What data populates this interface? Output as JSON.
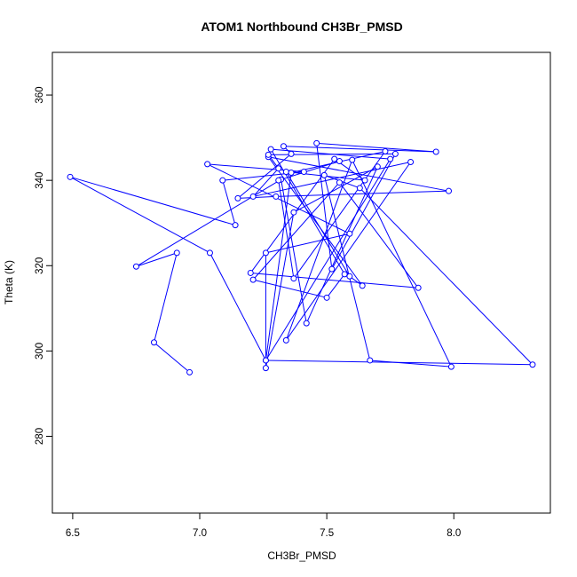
{
  "chart_data": {
    "type": "line",
    "title": "ATOM1 Northbound CH3Br_PMSD",
    "xlabel": "CH3Br_PMSD",
    "ylabel": "Theta (K)",
    "xlim": [
      6.42,
      8.38
    ],
    "ylim": [
      262,
      370
    ],
    "xticks": [
      6.5,
      7.0,
      7.5,
      8.0
    ],
    "xtick_labels": [
      "6.5",
      "7.0",
      "7.5",
      "8.0"
    ],
    "yticks": [
      280,
      300,
      320,
      340,
      360
    ],
    "ytick_labels": [
      "280",
      "300",
      "320",
      "340",
      "360"
    ],
    "grid": false,
    "marker": "open-circle",
    "color": "#0000ff",
    "series": [
      {
        "x": [
          6.96,
          6.82,
          6.91,
          6.75,
          7.32,
          7.42,
          7.7,
          7.37,
          7.26,
          7.26,
          7.59,
          7.03,
          7.41,
          7.09,
          7.14,
          6.49,
          7.04,
          7.26,
          7.75,
          7.28,
          7.57,
          7.5,
          7.21,
          7.55,
          7.86,
          7.2,
          7.53,
          7.65,
          7.34,
          7.59,
          7.64,
          7.27,
          7.98,
          7.3,
          7.15,
          7.36,
          7.33,
          7.93,
          7.46,
          7.52,
          7.77,
          7.27,
          7.31,
          7.21,
          7.83,
          7.34,
          7.6,
          7.99,
          7.67,
          7.49,
          7.63,
          8.31,
          7.26,
          7.36,
          7.73,
          7.37,
          7.31,
          7.55
        ],
        "y": [
          295.0,
          302.0,
          323.0,
          319.8,
          340.2,
          306.5,
          343.2,
          332.5,
          296.0,
          323.0,
          327.5,
          343.8,
          342.0,
          340.0,
          329.5,
          340.8,
          323.0,
          297.8,
          345.0,
          347.3,
          318.0,
          312.5,
          316.7,
          339.5,
          314.8,
          318.3,
          345.0,
          340.0,
          342.0,
          317.5,
          315.3,
          345.5,
          337.5,
          336.2,
          335.8,
          346.2,
          348.0,
          346.7,
          348.7,
          319.2,
          346.2,
          346.0,
          342.8,
          336.2,
          344.3,
          302.5,
          344.8,
          296.3,
          297.8,
          341.2,
          338.2,
          296.8,
          297.8,
          341.8,
          346.8,
          317.0,
          340.0,
          344.5
        ]
      }
    ]
  }
}
